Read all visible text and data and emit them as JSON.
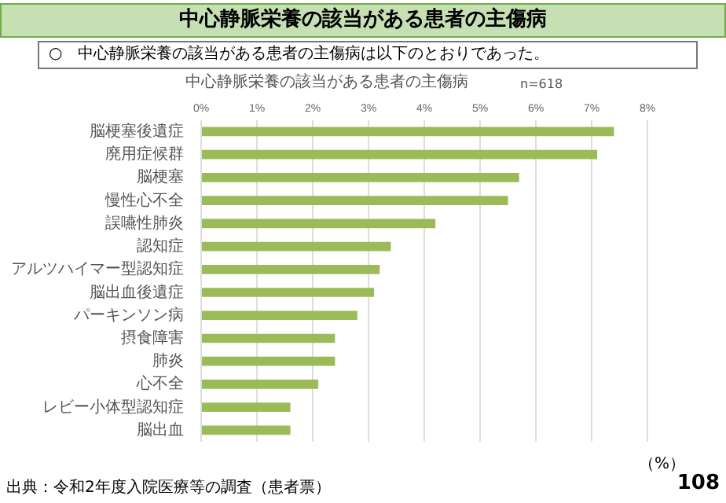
{
  "chart_data": {
    "type": "bar",
    "orientation": "horizontal",
    "title": "中心静脈栄養の該当がある患者の主傷病",
    "subtitle": "○　中心静脈栄養の該当がある患者の主傷病は以下のとおりであった。",
    "xlabel": "（%）",
    "categories": [
      "脳梗塞後遺症",
      "廃用症候群",
      "脳梗塞",
      "慢性心不全",
      "誤嚥性肺炎",
      "認知症",
      "アルツハイマー型認知症",
      "脳出血後遺症",
      "パーキンソン病",
      "摂食障害",
      "肺炎",
      "心不全",
      "レビー小体型認知症",
      "脳出血"
    ],
    "values": [
      7.4,
      7.1,
      5.7,
      5.5,
      4.2,
      3.4,
      3.2,
      3.1,
      2.8,
      2.4,
      2.4,
      2.1,
      1.6,
      1.6
    ],
    "color": "#9bbb59",
    "xlim": [
      0,
      8
    ],
    "xticks": [
      {
        "value": 0,
        "label": "0%"
      },
      {
        "value": 1,
        "label": "1%"
      },
      {
        "value": 2,
        "label": "2%"
      },
      {
        "value": 3,
        "label": "3%"
      },
      {
        "value": 4,
        "label": "4%"
      },
      {
        "value": 5,
        "label": "5%"
      },
      {
        "value": 6,
        "label": "6%"
      },
      {
        "value": 7,
        "label": "7%"
      },
      {
        "value": 8,
        "label": "8%"
      }
    ],
    "grid": "x",
    "legend": false,
    "annotations": [
      "n=618",
      "出典：令和2年度入院医療等の調査（患者票）",
      "108"
    ]
  }
}
